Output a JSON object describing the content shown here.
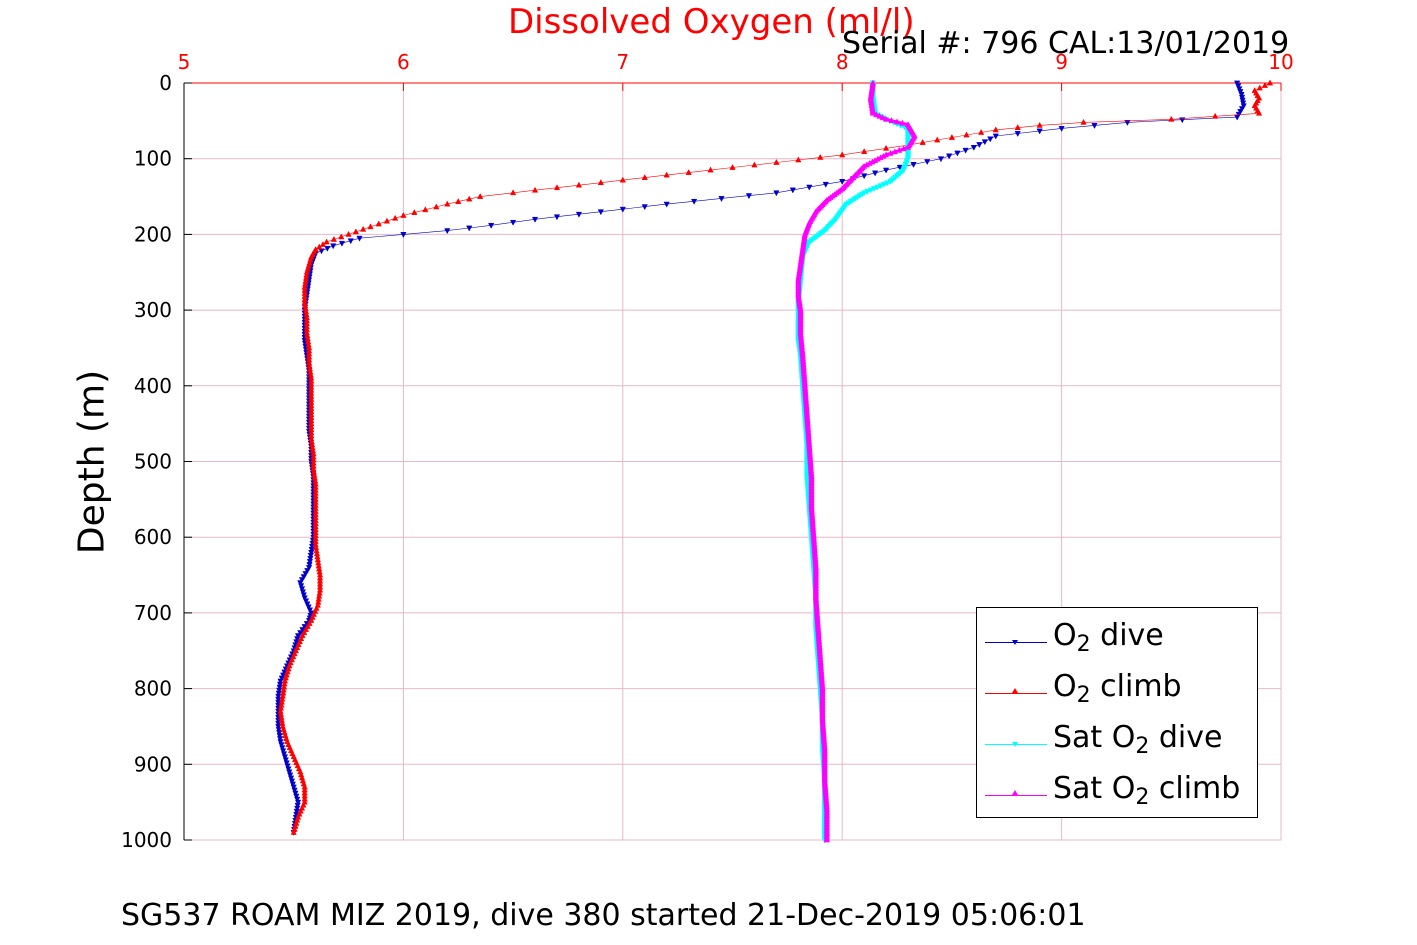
{
  "chart_data": {
    "type": "scatter",
    "title": "Dissolved Oxygen (ml/l)",
    "subtitle": "Serial #: 796  CAL:13/01/2019",
    "xlabel": "Dissolved Oxygen (ml/l)",
    "ylabel": "Depth (m)",
    "footer": "SG537 ROAM MIZ 2019, dive 380 started 21-Dec-2019 05:06:01",
    "xlim": [
      5,
      10
    ],
    "ylim": [
      0,
      1000
    ],
    "y_reversed": true,
    "x_axis_position": "top",
    "x_ticks": [
      "5",
      "6",
      "7",
      "8",
      "9",
      "10"
    ],
    "y_ticks": [
      "0",
      "100",
      "200",
      "300",
      "400",
      "500",
      "600",
      "700",
      "800",
      "900",
      "1000"
    ],
    "grid": true,
    "legend_position": "bottom-right",
    "colors": {
      "title": "#ff0000",
      "x_tick_labels": "#ff0000",
      "grid": "#e8b8c8"
    },
    "series": [
      {
        "name_prefix": "O",
        "name_sub": "2",
        "name_suffix": " dive",
        "color": "#0000cc",
        "marker": "triangle-down",
        "points": [
          [
            9.8,
            0
          ],
          [
            9.82,
            15
          ],
          [
            9.83,
            30
          ],
          [
            9.8,
            45
          ],
          [
            9.3,
            52
          ],
          [
            9.0,
            60
          ],
          [
            8.7,
            70
          ],
          [
            8.6,
            85
          ],
          [
            8.45,
            100
          ],
          [
            8.2,
            115
          ],
          [
            8.0,
            130
          ],
          [
            7.7,
            145
          ],
          [
            7.2,
            160
          ],
          [
            6.9,
            170
          ],
          [
            6.6,
            180
          ],
          [
            6.4,
            188
          ],
          [
            6.2,
            195
          ],
          [
            6.0,
            200
          ],
          [
            5.8,
            205
          ],
          [
            5.68,
            215
          ],
          [
            5.6,
            225
          ],
          [
            5.58,
            240
          ],
          [
            5.57,
            260
          ],
          [
            5.56,
            280
          ],
          [
            5.55,
            300
          ],
          [
            5.55,
            320
          ],
          [
            5.55,
            340
          ],
          [
            5.56,
            360
          ],
          [
            5.57,
            380
          ],
          [
            5.57,
            400
          ],
          [
            5.57,
            420
          ],
          [
            5.57,
            440
          ],
          [
            5.57,
            460
          ],
          [
            5.58,
            480
          ],
          [
            5.58,
            500
          ],
          [
            5.59,
            520
          ],
          [
            5.59,
            540
          ],
          [
            5.59,
            560
          ],
          [
            5.59,
            580
          ],
          [
            5.59,
            600
          ],
          [
            5.58,
            620
          ],
          [
            5.57,
            640
          ],
          [
            5.53,
            660
          ],
          [
            5.55,
            680
          ],
          [
            5.58,
            700
          ],
          [
            5.57,
            710
          ],
          [
            5.52,
            730
          ],
          [
            5.5,
            750
          ],
          [
            5.47,
            770
          ],
          [
            5.44,
            790
          ],
          [
            5.43,
            810
          ],
          [
            5.43,
            830
          ],
          [
            5.43,
            850
          ],
          [
            5.44,
            870
          ],
          [
            5.46,
            890
          ],
          [
            5.48,
            910
          ],
          [
            5.5,
            930
          ],
          [
            5.52,
            950
          ],
          [
            5.51,
            970
          ],
          [
            5.5,
            990
          ]
        ]
      },
      {
        "name_prefix": "O",
        "name_sub": "2",
        "name_suffix": " climb",
        "color": "#ff0000",
        "marker": "triangle-up",
        "points": [
          [
            9.95,
            0
          ],
          [
            9.88,
            10
          ],
          [
            9.9,
            20
          ],
          [
            9.88,
            30
          ],
          [
            9.9,
            40
          ],
          [
            9.5,
            48
          ],
          [
            9.1,
            52
          ],
          [
            8.9,
            56
          ],
          [
            8.7,
            62
          ],
          [
            8.5,
            72
          ],
          [
            8.3,
            82
          ],
          [
            8.0,
            95
          ],
          [
            7.7,
            105
          ],
          [
            7.4,
            115
          ],
          [
            7.1,
            125
          ],
          [
            6.8,
            135
          ],
          [
            6.5,
            145
          ],
          [
            6.35,
            150
          ],
          [
            6.2,
            160
          ],
          [
            6.0,
            175
          ],
          [
            5.85,
            190
          ],
          [
            5.75,
            200
          ],
          [
            5.65,
            210
          ],
          [
            5.6,
            220
          ],
          [
            5.58,
            230
          ],
          [
            5.56,
            250
          ],
          [
            5.55,
            270
          ],
          [
            5.55,
            290
          ],
          [
            5.56,
            310
          ],
          [
            5.56,
            330
          ],
          [
            5.57,
            350
          ],
          [
            5.57,
            370
          ],
          [
            5.58,
            390
          ],
          [
            5.58,
            410
          ],
          [
            5.58,
            430
          ],
          [
            5.58,
            450
          ],
          [
            5.58,
            470
          ],
          [
            5.59,
            490
          ],
          [
            5.59,
            510
          ],
          [
            5.6,
            530
          ],
          [
            5.6,
            550
          ],
          [
            5.6,
            570
          ],
          [
            5.6,
            590
          ],
          [
            5.6,
            610
          ],
          [
            5.61,
            630
          ],
          [
            5.62,
            650
          ],
          [
            5.62,
            670
          ],
          [
            5.61,
            690
          ],
          [
            5.58,
            710
          ],
          [
            5.54,
            730
          ],
          [
            5.51,
            750
          ],
          [
            5.48,
            770
          ],
          [
            5.46,
            790
          ],
          [
            5.45,
            810
          ],
          [
            5.44,
            830
          ],
          [
            5.45,
            850
          ],
          [
            5.47,
            870
          ],
          [
            5.5,
            890
          ],
          [
            5.53,
            910
          ],
          [
            5.55,
            930
          ],
          [
            5.55,
            950
          ],
          [
            5.52,
            970
          ],
          [
            5.5,
            990
          ]
        ]
      },
      {
        "name_prefix": "Sat O",
        "name_sub": "2",
        "name_suffix": " dive",
        "color": "#00ffff",
        "marker": "triangle-down",
        "points": [
          [
            8.14,
            0
          ],
          [
            8.14,
            20
          ],
          [
            8.15,
            40
          ],
          [
            8.2,
            48
          ],
          [
            8.3,
            60
          ],
          [
            8.3,
            80
          ],
          [
            8.3,
            100
          ],
          [
            8.28,
            115
          ],
          [
            8.22,
            130
          ],
          [
            8.1,
            145
          ],
          [
            8.02,
            160
          ],
          [
            7.97,
            180
          ],
          [
            7.92,
            195
          ],
          [
            7.85,
            210
          ],
          [
            7.82,
            230
          ],
          [
            7.81,
            260
          ],
          [
            7.8,
            290
          ],
          [
            7.8,
            320
          ],
          [
            7.8,
            340
          ],
          [
            7.81,
            360
          ],
          [
            7.82,
            400
          ],
          [
            7.83,
            440
          ],
          [
            7.84,
            480
          ],
          [
            7.84,
            520
          ],
          [
            7.85,
            560
          ],
          [
            7.86,
            600
          ],
          [
            7.87,
            640
          ],
          [
            7.88,
            680
          ],
          [
            7.88,
            720
          ],
          [
            7.89,
            760
          ],
          [
            7.9,
            800
          ],
          [
            7.91,
            840
          ],
          [
            7.91,
            880
          ],
          [
            7.92,
            920
          ],
          [
            7.92,
            960
          ],
          [
            7.92,
            1000
          ]
        ]
      },
      {
        "name_prefix": "Sat O",
        "name_sub": "2",
        "name_suffix": " climb",
        "color": "#ff00ff",
        "marker": "triangle-up",
        "points": [
          [
            8.14,
            0
          ],
          [
            8.13,
            20
          ],
          [
            8.14,
            40
          ],
          [
            8.2,
            48
          ],
          [
            8.3,
            55
          ],
          [
            8.33,
            70
          ],
          [
            8.3,
            85
          ],
          [
            8.2,
            95
          ],
          [
            8.1,
            110
          ],
          [
            8.05,
            125
          ],
          [
            8.0,
            140
          ],
          [
            7.93,
            155
          ],
          [
            7.88,
            170
          ],
          [
            7.85,
            185
          ],
          [
            7.83,
            200
          ],
          [
            7.82,
            220
          ],
          [
            7.81,
            240
          ],
          [
            7.8,
            260
          ],
          [
            7.8,
            280
          ],
          [
            7.81,
            300
          ],
          [
            7.81,
            330
          ],
          [
            7.82,
            360
          ],
          [
            7.83,
            400
          ],
          [
            7.84,
            440
          ],
          [
            7.85,
            480
          ],
          [
            7.86,
            520
          ],
          [
            7.86,
            560
          ],
          [
            7.87,
            600
          ],
          [
            7.88,
            640
          ],
          [
            7.88,
            680
          ],
          [
            7.89,
            720
          ],
          [
            7.9,
            760
          ],
          [
            7.91,
            800
          ],
          [
            7.91,
            840
          ],
          [
            7.92,
            880
          ],
          [
            7.92,
            920
          ],
          [
            7.93,
            960
          ],
          [
            7.93,
            1000
          ]
        ]
      }
    ]
  }
}
